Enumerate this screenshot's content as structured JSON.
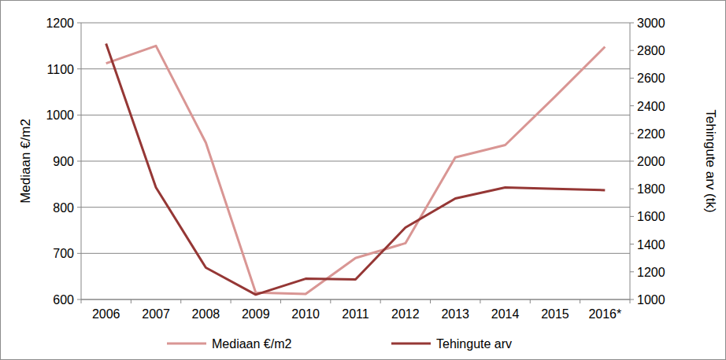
{
  "chart_data": {
    "type": "line",
    "categories": [
      "2006",
      "2007",
      "2008",
      "2009",
      "2010",
      "2011",
      "2012",
      "2013",
      "2014",
      "2015",
      "2016*"
    ],
    "series": [
      {
        "name": "Mediaan €/m2",
        "color": "#d99694",
        "values": [
          1112,
          1150,
          940,
          615,
          612,
          690,
          722,
          908,
          935,
          1040,
          1148
        ]
      },
      {
        "name": "Tehingute arv",
        "color": "#953735",
        "axis": "y2",
        "values": [
          2850,
          1810,
          1230,
          1035,
          1150,
          1145,
          1520,
          1730,
          1810,
          1800,
          1790
        ]
      }
    ],
    "y_label": "Mediaan €/m2",
    "y2_label": "Tehingute arv (tk)",
    "ylim": [
      600,
      1200
    ],
    "yticks": [
      600,
      700,
      800,
      900,
      1000,
      1100,
      1200
    ],
    "y2lim": [
      1000,
      3000
    ],
    "y2ticks": [
      1000,
      1200,
      1400,
      1600,
      1800,
      2000,
      2200,
      2400,
      2600,
      2800,
      3000
    ],
    "grid": true,
    "legend": "bottom"
  }
}
